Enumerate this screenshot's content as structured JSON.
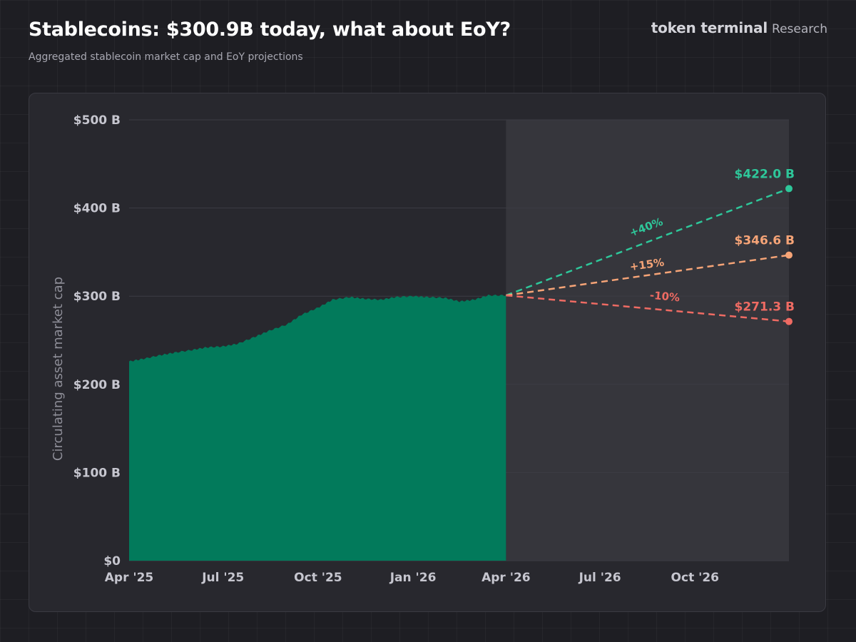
{
  "header": {
    "title": "Stablecoins: $300.9B today, what about EoY?",
    "subtitle": "Aggregated stablecoin market cap and EoY projections"
  },
  "brand": {
    "name": "token terminal",
    "suffix": "Research"
  },
  "chart_data": {
    "type": "area",
    "title": "Stablecoins: $300.9B today, what about EoY?",
    "subtitle": "Aggregated stablecoin market cap and EoY projections",
    "xlabel": "",
    "ylabel": "Circulating asset market cap",
    "ylim": [
      0,
      500
    ],
    "y_unit": "B",
    "y_ticks": [
      0,
      100,
      200,
      300,
      400,
      500
    ],
    "y_tick_labels": [
      "$0",
      "$100 B",
      "$200 B",
      "$300 B",
      "$400 B",
      "$500 B"
    ],
    "x_range": [
      "2025-04-01",
      "2026-12-31"
    ],
    "x_ticks": [
      "2025-04-01",
      "2025-07-01",
      "2025-10-01",
      "2026-01-01",
      "2026-04-01",
      "2026-07-01",
      "2026-10-01"
    ],
    "x_tick_labels": [
      "Apr '25",
      "Jul '25",
      "Oct '25",
      "Jan '26",
      "Apr '26",
      "Jul '26",
      "Oct '26"
    ],
    "grid": true,
    "projection_region": [
      "2026-04-01",
      "2026-12-31"
    ],
    "series": [
      {
        "kind": "area",
        "color": "#027a5b",
        "points": [
          [
            "2025-04-01",
            226
          ],
          [
            "2025-04-15",
            229
          ],
          [
            "2025-05-01",
            233
          ],
          [
            "2025-05-15",
            236
          ],
          [
            "2025-06-01",
            239
          ],
          [
            "2025-06-15",
            242
          ],
          [
            "2025-07-01",
            243
          ],
          [
            "2025-07-15",
            246
          ],
          [
            "2025-08-01",
            254
          ],
          [
            "2025-08-15",
            261
          ],
          [
            "2025-09-01",
            268
          ],
          [
            "2025-09-15",
            279
          ],
          [
            "2025-10-01",
            287
          ],
          [
            "2025-10-15",
            296
          ],
          [
            "2025-11-01",
            299
          ],
          [
            "2025-11-15",
            297
          ],
          [
            "2025-12-01",
            296
          ],
          [
            "2025-12-15",
            299
          ],
          [
            "2026-01-01",
            300
          ],
          [
            "2026-01-15",
            299
          ],
          [
            "2026-02-01",
            298
          ],
          [
            "2026-02-15",
            294
          ],
          [
            "2026-03-01",
            296
          ],
          [
            "2026-03-15",
            301
          ],
          [
            "2026-04-01",
            300.9
          ]
        ]
      },
      {
        "kind": "projection",
        "name": "+40%",
        "color": "#2ec79a",
        "points": [
          [
            "2026-04-01",
            300.9
          ],
          [
            "2026-12-31",
            422.0
          ]
        ],
        "end_label": "$422.0 B"
      },
      {
        "kind": "projection",
        "name": "+15%",
        "color": "#f6a477",
        "points": [
          [
            "2026-04-01",
            300.9
          ],
          [
            "2026-12-31",
            346.6
          ]
        ],
        "end_label": "$346.6 B"
      },
      {
        "kind": "projection",
        "name": "-10%",
        "color": "#ef6b63",
        "points": [
          [
            "2026-04-01",
            300.9
          ],
          [
            "2026-12-31",
            271.3
          ]
        ],
        "end_label": "$271.3 B"
      }
    ]
  }
}
